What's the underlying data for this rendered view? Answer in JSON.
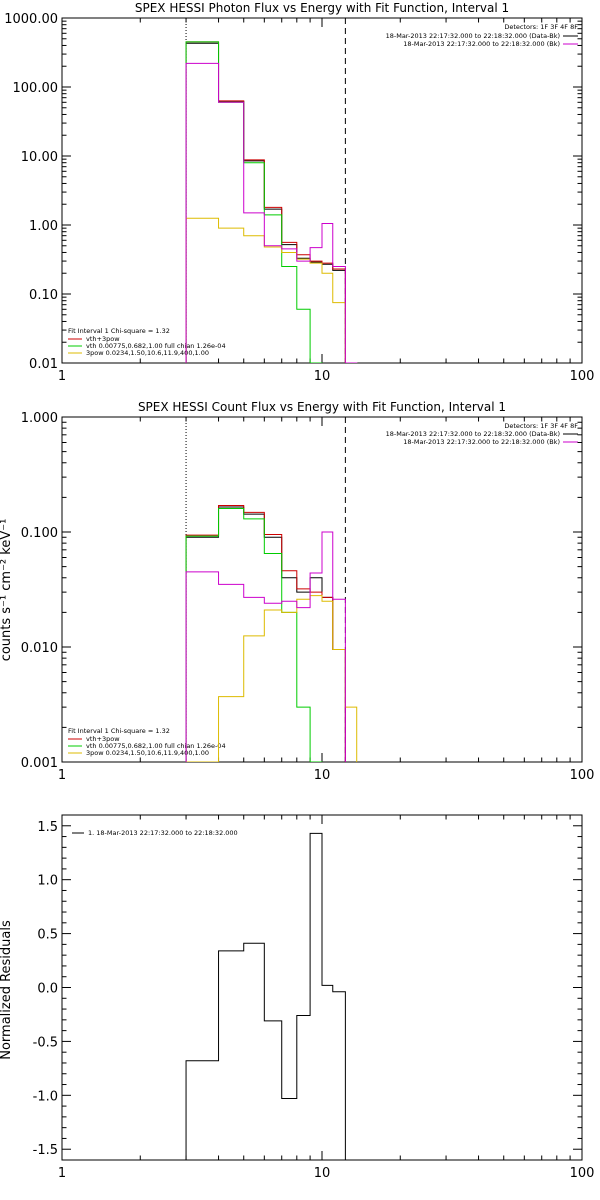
{
  "chart_data": [
    {
      "type": "line",
      "title": "SPEX HESSI Photon Flux vs Energy with Fit Function, Interval 1",
      "xlabel": "",
      "ylabel": "",
      "xscale": "log",
      "yscale": "log",
      "xlim": [
        1,
        100
      ],
      "ylim": [
        0.01,
        1000
      ],
      "x_tick_labels": [
        "1",
        "10",
        "100"
      ],
      "y_tick_labels": [
        "0.01",
        "0.10",
        "1.00",
        "10.00",
        "100.00",
        "1000.00"
      ],
      "vlines": [
        {
          "x": 3.0,
          "style": "dotted"
        },
        {
          "x": 12.3,
          "style": "dashed"
        }
      ],
      "info": {
        "detectors": "Detectors: 1F 3F 4F 8F",
        "time_data": "18-Mar-2013 22:17:32.000 to 22:18:32.000 (Data-Bk)",
        "time_bk": "18-Mar-2013 22:17:32.000 to 22:18:32.000 (Bk)"
      },
      "fit_legend": {
        "header": "Fit Interval 1    Chi-square = 1.32",
        "lines": [
          {
            "text": "vth+3pow",
            "color": "#cc0000"
          },
          {
            "text": "vth 0.00775,0.682,1.00   full chian 1.26e-04",
            "color": "#00cc00"
          },
          {
            "text": "3pow 0.0234,1.50,10.6,11.9,400,1.00",
            "color": "#ddbb00"
          }
        ]
      },
      "edges": [
        3.0,
        4.0,
        5.0,
        6.0,
        7.0,
        8.0,
        9.0,
        10.0,
        11.0,
        12.3,
        13.6
      ],
      "series": [
        {
          "name": "Data-Bk",
          "color": "#000000",
          "values": [
            430,
            62,
            8.5,
            1.7,
            0.52,
            0.33,
            0.29,
            0.27,
            0.22,
            null
          ]
        },
        {
          "name": "vth+3pow",
          "color": "#cc0000",
          "values": [
            450,
            63,
            8.8,
            1.8,
            0.56,
            0.37,
            0.3,
            0.28,
            0.23,
            null
          ]
        },
        {
          "name": "vth",
          "color": "#00cc00",
          "values": [
            450,
            60,
            8.0,
            1.4,
            0.25,
            0.06,
            0.009,
            null,
            null,
            null
          ]
        },
        {
          "name": "3pow",
          "color": "#ddbb00",
          "values": [
            1.25,
            0.9,
            0.7,
            0.48,
            0.4,
            0.32,
            0.28,
            0.2,
            0.075,
            0.006
          ]
        },
        {
          "name": "Bk",
          "color": "#cc00cc",
          "values": [
            220,
            60,
            1.5,
            0.5,
            0.45,
            0.3,
            0.47,
            1.05,
            0.25,
            0.006
          ]
        }
      ]
    },
    {
      "type": "line",
      "title": "SPEX HESSI Count Flux vs Energy with Fit Function, Interval 1",
      "xlabel": "",
      "ylabel": "counts s⁻¹ cm⁻² keV⁻¹",
      "xscale": "log",
      "yscale": "log",
      "xlim": [
        1,
        100
      ],
      "ylim": [
        0.001,
        1
      ],
      "x_tick_labels": [
        "1",
        "10",
        "100"
      ],
      "y_tick_labels": [
        "0.001",
        "0.010",
        "0.100",
        "1.000"
      ],
      "vlines": [
        {
          "x": 3.0,
          "style": "dotted"
        },
        {
          "x": 12.3,
          "style": "dashed"
        }
      ],
      "info": {
        "detectors": "Detectors: 1F 3F 4F 8F",
        "time_data": "18-Mar-2013 22:17:32.000 to 22:18:32.000 (Data-Bk)",
        "time_bk": "18-Mar-2013 22:17:32.000 to 22:18:32.000 (Bk)"
      },
      "fit_legend": {
        "header": "Fit Interval 1    Chi-square = 1.32",
        "lines": [
          {
            "text": "vth+3pow",
            "color": "#cc0000"
          },
          {
            "text": "vth 0.00775,0.682,1.00   full chian 1.26e-04",
            "color": "#00cc00"
          },
          {
            "text": "3pow 0.0234,1.50,10.6,11.9,400,1.00",
            "color": "#ddbb00"
          }
        ]
      },
      "edges": [
        3.0,
        4.0,
        5.0,
        6.0,
        7.0,
        8.0,
        9.0,
        10.0,
        11.0,
        12.3,
        13.6
      ],
      "series": [
        {
          "name": "Data-Bk",
          "color": "#000000",
          "values": [
            0.09,
            0.165,
            0.143,
            0.09,
            0.04,
            0.03,
            0.04,
            0.027,
            0.0095,
            null
          ]
        },
        {
          "name": "vth+3pow",
          "color": "#cc0000",
          "values": [
            0.094,
            0.17,
            0.148,
            0.095,
            0.046,
            0.032,
            0.03,
            0.027,
            0.0095,
            null
          ]
        },
        {
          "name": "vth",
          "color": "#00cc00",
          "values": [
            0.092,
            0.16,
            0.13,
            0.065,
            0.02,
            0.003,
            0.0009,
            null,
            null,
            null
          ]
        },
        {
          "name": "3pow",
          "color": "#ddbb00",
          "values": [
            0.0004,
            0.0037,
            0.0125,
            0.021,
            0.02,
            0.026,
            0.028,
            0.025,
            0.0095,
            0.003
          ]
        },
        {
          "name": "Bk",
          "color": "#cc00cc",
          "values": [
            0.045,
            0.035,
            0.027,
            0.024,
            0.025,
            0.022,
            0.044,
            0.1,
            0.026,
            null
          ]
        }
      ]
    },
    {
      "type": "line",
      "title": "",
      "xlabel": "",
      "ylabel": "Normalized Residuals",
      "xscale": "log",
      "yscale": "linear",
      "xlim": [
        1,
        100
      ],
      "ylim": [
        -1.6,
        1.6
      ],
      "x_tick_labels": [
        "1",
        "10",
        "100"
      ],
      "y_tick_labels": [
        "-1.5",
        "-1.0",
        "-0.5",
        "0.0",
        "0.5",
        "1.0",
        "1.5"
      ],
      "legend": "1. 18-Mar-2013 22:17:32.000 to 22:18:32.000",
      "edges": [
        3.0,
        4.0,
        5.0,
        6.0,
        7.0,
        8.0,
        9.0,
        10.0,
        11.0,
        12.3
      ],
      "series": [
        {
          "name": "1. 18-Mar-2013 22:17:32.000 to 22:18:32.000",
          "color": "#000000",
          "values": [
            -0.68,
            0.34,
            0.41,
            -0.31,
            -1.03,
            -0.26,
            1.43,
            0.02,
            -0.04
          ]
        }
      ]
    }
  ]
}
